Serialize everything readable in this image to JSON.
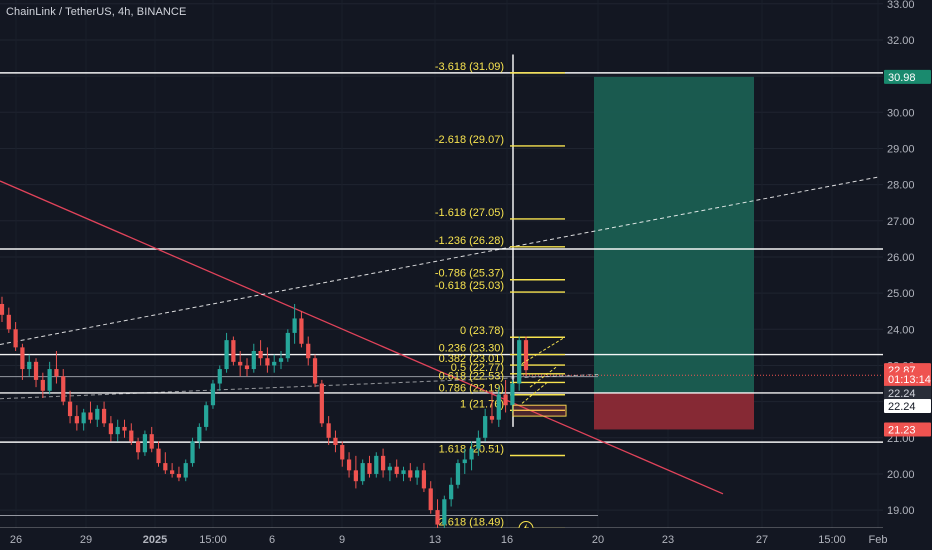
{
  "header": {
    "title": "ChainLink / TetherUS, 4h, BINANCE"
  },
  "colors": {
    "background": "#131722",
    "up": "#26a69a",
    "down": "#ef5350",
    "fib": "#f7e34f",
    "trendline": "#e0435a",
    "target_zone": "#1a5e52",
    "stop_zone": "#8c2a36",
    "white": "#ffffff"
  },
  "chart_data": {
    "type": "candlestick",
    "symbol": "ChainLink / TetherUS",
    "interval": "4h",
    "exchange": "BINANCE",
    "ylim": [
      18.45,
      33.05
    ],
    "y_ticks": [
      "33.00",
      "32.00",
      "31.00",
      "30.00",
      "29.00",
      "28.00",
      "27.00",
      "26.00",
      "25.00",
      "24.00",
      "23.00",
      "22.00",
      "21.00",
      "20.00",
      "19.00"
    ],
    "x_ticks": [
      "26",
      "29",
      "2025",
      "15:00",
      "6",
      "9",
      "13",
      "16",
      "20",
      "23",
      "27",
      "15:00",
      "Feb"
    ],
    "fib_levels": [
      {
        "label": "-3.618 (31.09)",
        "price": 31.09
      },
      {
        "label": "-2.618 (29.07)",
        "price": 29.07
      },
      {
        "label": "-1.618 (27.05)",
        "price": 27.05
      },
      {
        "label": "-1.236 (26.28)",
        "price": 26.28
      },
      {
        "label": "-0.786 (25.37)",
        "price": 25.37
      },
      {
        "label": "-0.618 (25.03)",
        "price": 25.03
      },
      {
        "label": "0 (23.78)",
        "price": 23.78
      },
      {
        "label": "0.236 (23.30)",
        "price": 23.3
      },
      {
        "label": "0.382 (23.01)",
        "price": 23.01
      },
      {
        "label": "0.5 (22.77)",
        "price": 22.77
      },
      {
        "label": "0.618 (22.53)",
        "price": 22.53
      },
      {
        "label": "0.786 (22.19)",
        "price": 22.19
      },
      {
        "label": "1 (21.76)",
        "price": 21.76
      },
      {
        "label": "1.618 (20.51)",
        "price": 20.51
      },
      {
        "label": "2.618 (18.49)",
        "price": 18.49
      }
    ],
    "horizontal_levels": [
      31.09,
      26.22,
      23.3,
      22.24,
      20.88,
      18.49
    ],
    "price_badges": [
      {
        "text": "30.98",
        "price": 30.98,
        "color": "#1a8a6e",
        "text_color": "#ffffff"
      },
      {
        "text": "22.87",
        "price": 22.87,
        "color": "#ef5350",
        "text_color": "#ffffff"
      },
      {
        "text": "01:13:14",
        "price": 22.62,
        "color": "#ef5350",
        "text_color": "#ffffff"
      },
      {
        "text": "22.24",
        "price": 22.24,
        "color": "#2a2e39",
        "text_color": "#d1d4dc"
      },
      {
        "text": "22.24",
        "price": 21.88,
        "color": "#ffffff",
        "text_color": "#131722"
      },
      {
        "text": "21.23",
        "price": 21.23,
        "color": "#ef5350",
        "text_color": "#ffffff"
      }
    ],
    "position": {
      "entry": 22.24,
      "target": 30.98,
      "stop": 21.23
    },
    "candles_ohlc": [
      [
        24.7,
        24.9,
        24.2,
        24.4
      ],
      [
        24.4,
        24.6,
        23.9,
        24.0
      ],
      [
        24.0,
        24.2,
        23.4,
        23.5
      ],
      [
        23.5,
        23.6,
        22.6,
        22.9
      ],
      [
        22.9,
        23.3,
        22.7,
        23.1
      ],
      [
        23.1,
        23.2,
        22.4,
        22.6
      ],
      [
        22.6,
        22.8,
        22.1,
        22.3
      ],
      [
        22.3,
        23.1,
        22.2,
        22.9
      ],
      [
        22.9,
        23.4,
        22.5,
        22.7
      ],
      [
        22.7,
        22.9,
        21.9,
        22.0
      ],
      [
        22.0,
        22.3,
        21.4,
        21.6
      ],
      [
        21.6,
        21.9,
        21.2,
        21.4
      ],
      [
        21.4,
        21.8,
        21.2,
        21.7
      ],
      [
        21.7,
        22.0,
        21.4,
        21.5
      ],
      [
        21.5,
        21.9,
        21.3,
        21.8
      ],
      [
        21.8,
        22.0,
        21.3,
        21.4
      ],
      [
        21.4,
        21.6,
        20.9,
        21.1
      ],
      [
        21.1,
        21.5,
        20.9,
        21.3
      ],
      [
        21.3,
        21.5,
        21.0,
        21.2
      ],
      [
        21.2,
        21.4,
        20.8,
        20.9
      ],
      [
        20.9,
        21.0,
        20.4,
        20.6
      ],
      [
        20.6,
        21.2,
        20.5,
        21.1
      ],
      [
        21.1,
        21.3,
        20.6,
        20.7
      ],
      [
        20.7,
        20.9,
        20.2,
        20.3
      ],
      [
        20.3,
        20.6,
        20.0,
        20.1
      ],
      [
        20.1,
        20.3,
        19.9,
        20.0
      ],
      [
        20.0,
        20.2,
        19.8,
        19.9
      ],
      [
        19.9,
        20.4,
        19.8,
        20.3
      ],
      [
        20.3,
        21.0,
        20.2,
        20.9
      ],
      [
        20.9,
        21.4,
        20.7,
        21.3
      ],
      [
        21.3,
        22.0,
        21.2,
        21.9
      ],
      [
        21.9,
        22.6,
        21.8,
        22.5
      ],
      [
        22.5,
        23.0,
        22.3,
        22.9
      ],
      [
        22.9,
        23.9,
        22.8,
        23.7
      ],
      [
        23.7,
        23.8,
        23.0,
        23.1
      ],
      [
        23.1,
        23.4,
        22.7,
        23.0
      ],
      [
        23.0,
        23.2,
        22.7,
        22.9
      ],
      [
        22.9,
        23.6,
        22.8,
        23.4
      ],
      [
        23.4,
        23.7,
        23.0,
        23.2
      ],
      [
        23.2,
        23.5,
        22.8,
        23.0
      ],
      [
        23.0,
        23.3,
        22.8,
        23.1
      ],
      [
        23.1,
        23.4,
        22.9,
        23.2
      ],
      [
        23.2,
        24.0,
        23.1,
        23.9
      ],
      [
        23.9,
        24.7,
        23.6,
        24.3
      ],
      [
        24.3,
        24.5,
        23.5,
        23.6
      ],
      [
        23.6,
        23.8,
        23.0,
        23.2
      ],
      [
        23.2,
        23.3,
        22.4,
        22.5
      ],
      [
        22.5,
        22.6,
        21.3,
        21.4
      ],
      [
        21.4,
        21.6,
        20.8,
        21.0
      ],
      [
        21.0,
        21.2,
        20.6,
        20.8
      ],
      [
        20.8,
        20.9,
        20.2,
        20.4
      ],
      [
        20.4,
        20.6,
        19.9,
        20.1
      ],
      [
        20.1,
        20.5,
        19.6,
        19.8
      ],
      [
        19.8,
        20.4,
        19.7,
        20.3
      ],
      [
        20.3,
        20.5,
        19.9,
        20.0
      ],
      [
        20.0,
        20.6,
        19.9,
        20.5
      ],
      [
        20.5,
        20.7,
        19.9,
        20.1
      ],
      [
        20.1,
        20.3,
        19.8,
        20.2
      ],
      [
        20.2,
        20.4,
        19.9,
        20.0
      ],
      [
        20.0,
        20.2,
        19.8,
        20.1
      ],
      [
        20.1,
        20.3,
        19.8,
        19.9
      ],
      [
        19.9,
        20.2,
        19.7,
        20.1
      ],
      [
        20.1,
        20.3,
        19.5,
        19.6
      ],
      [
        19.6,
        19.8,
        18.9,
        19.0
      ],
      [
        19.0,
        19.3,
        18.4,
        18.6
      ],
      [
        18.6,
        19.4,
        18.5,
        19.3
      ],
      [
        19.3,
        19.9,
        19.1,
        19.7
      ],
      [
        19.7,
        20.4,
        19.6,
        20.3
      ],
      [
        20.3,
        20.7,
        20.0,
        20.4
      ],
      [
        20.4,
        20.9,
        20.1,
        20.7
      ],
      [
        20.7,
        21.2,
        20.5,
        21.0
      ],
      [
        21.0,
        21.8,
        20.9,
        21.6
      ],
      [
        21.6,
        22.3,
        21.4,
        21.5
      ],
      [
        21.5,
        22.4,
        21.3,
        22.2
      ],
      [
        22.2,
        22.6,
        21.7,
        21.9
      ],
      [
        21.9,
        22.6,
        21.7,
        22.5
      ],
      [
        22.5,
        23.8,
        22.3,
        23.7
      ],
      [
        23.7,
        23.8,
        22.7,
        22.87
      ]
    ]
  }
}
